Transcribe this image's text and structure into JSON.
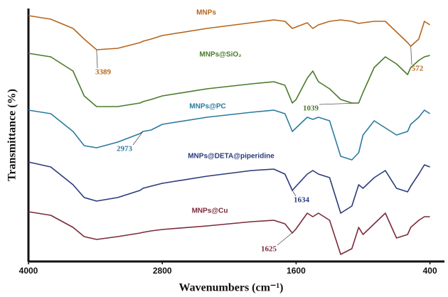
{
  "chart_data": {
    "type": "line",
    "xlabel": "Wavenumbers (cm⁻¹)",
    "ylabel": "Transmittance (%)",
    "xlim": [
      4000,
      270
    ],
    "xticks": [
      4000,
      2800,
      1600,
      400
    ],
    "ylim": [
      0,
      356
    ],
    "x": [
      4000,
      3800,
      3600,
      3500,
      3389,
      3200,
      3000,
      2973,
      2900,
      2800,
      2400,
      2000,
      1800,
      1700,
      1634,
      1600,
      1500,
      1450,
      1400,
      1300,
      1200,
      1100,
      1039,
      1000,
      900,
      800,
      700,
      600,
      572,
      500,
      450,
      400
    ],
    "series": [
      {
        "name": "MNPs",
        "color": "#b5651d",
        "values": [
          346,
          341,
          328,
          313,
          298,
          300,
          308,
          310,
          313,
          318,
          328,
          336,
          340,
          338,
          328,
          330,
          336,
          328,
          333,
          338,
          340,
          338,
          335,
          336,
          338,
          338,
          323,
          308,
          303,
          313,
          338,
          333
        ]
      },
      {
        "name": "MNPs@SiO₂",
        "color": "#4a7a2a",
        "values": [
          293,
          288,
          268,
          233,
          218,
          218,
          223,
          225,
          228,
          233,
          243,
          250,
          253,
          248,
          223,
          228,
          258,
          268,
          253,
          243,
          228,
          223,
          223,
          238,
          273,
          288,
          278,
          263,
          273,
          283,
          288,
          290
        ]
      },
      {
        "name": "MNPs@PC",
        "color": "#2a7aa0",
        "values": [
          213,
          208,
          183,
          163,
          160,
          168,
          180,
          183,
          185,
          193,
          203,
          210,
          213,
          208,
          183,
          188,
          203,
          200,
          203,
          198,
          148,
          143,
          153,
          178,
          198,
          188,
          178,
          183,
          193,
          203,
          213,
          208
        ]
      },
      {
        "name": "MNPs@DETA@piperidine",
        "color": "#2a3a7a",
        "values": [
          140,
          133,
          108,
          90,
          85,
          90,
          100,
          103,
          106,
          110,
          120,
          128,
          130,
          123,
          100,
          106,
          123,
          128,
          123,
          118,
          68,
          78,
          108,
          103,
          118,
          128,
          103,
          98,
          106,
          123,
          136,
          133
        ]
      },
      {
        "name": "MNPs@Cu",
        "color": "#7a2a3a",
        "values": [
          70,
          65,
          48,
          35,
          31,
          35,
          40,
          41,
          43,
          45,
          50,
          56,
          58,
          53,
          40,
          46,
          68,
          63,
          68,
          58,
          10,
          18,
          48,
          38,
          53,
          68,
          33,
          38,
          48,
          58,
          63,
          63
        ]
      }
    ],
    "annotations": [
      {
        "label": "3389",
        "x": 3389,
        "series": 0
      },
      {
        "label": "572",
        "x": 572,
        "series": 0
      },
      {
        "label": "1039",
        "x": 1039,
        "series": 1
      },
      {
        "label": "2973",
        "x": 2973,
        "series": 2
      },
      {
        "label": "1634",
        "x": 1634,
        "series": 3
      },
      {
        "label": "1625",
        "x": 1625,
        "series": 4
      }
    ]
  }
}
